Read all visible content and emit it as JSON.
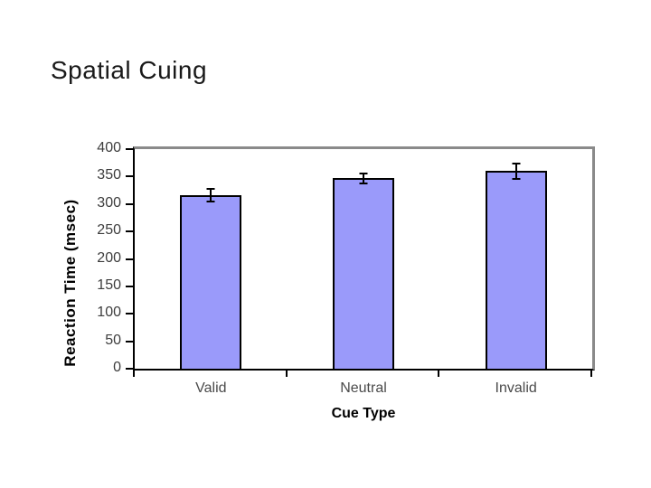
{
  "slide": {
    "title": "Spatial Cuing",
    "background_color": "#ffffff"
  },
  "chart_data": {
    "type": "bar",
    "title": "Spatial Cuing",
    "categories": [
      "Valid",
      "Neutral",
      "Invalid"
    ],
    "values": [
      316,
      347,
      360
    ],
    "error_bars": [
      13,
      11,
      16
    ],
    "xlabel": "Cue Type",
    "ylabel": "Reaction Time (msec)",
    "ylim": [
      0,
      400
    ],
    "yticks": [
      0,
      50,
      100,
      150,
      200,
      250,
      300,
      350,
      400
    ],
    "grid": "off",
    "legend_position": "none",
    "bar_fill_color": "#9a9afa",
    "bar_border_color": "#000000",
    "axis_color": "#000000",
    "plot_border_color": "#8a8a8a",
    "tick_label_color": "#3d3d3d",
    "category_label_color": "#4a4a4a"
  }
}
